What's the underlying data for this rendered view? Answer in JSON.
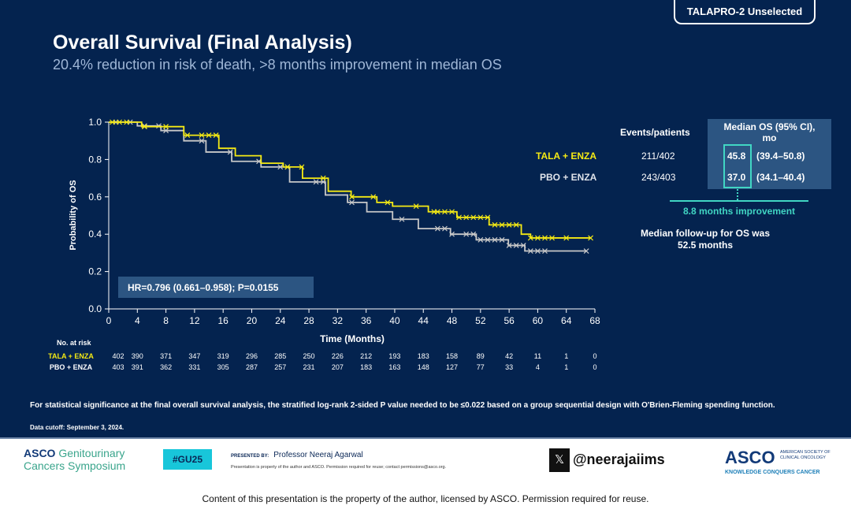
{
  "header": {
    "tag": "TALAPRO-2 Unselected",
    "title": "Overall Survival (Final Analysis)",
    "subtitle": "20.4% reduction in risk of death, >8 months improvement in median OS"
  },
  "chart_data": {
    "type": "line",
    "subtype": "kaplan-meier",
    "xlabel": "Time (Months)",
    "ylabel": "Probability of OS",
    "xlim": [
      0,
      68
    ],
    "ylim": [
      0,
      1.0
    ],
    "xticks": [
      0,
      4,
      8,
      12,
      16,
      20,
      24,
      28,
      32,
      36,
      40,
      44,
      48,
      52,
      56,
      60,
      64,
      68
    ],
    "yticks": [
      "0.0",
      "0.2",
      "0.4",
      "0.6",
      "0.8",
      "1.0"
    ],
    "grid": false,
    "annotation": "HR=0.796 (0.661–0.958); P=0.0155",
    "series": [
      {
        "name": "TALA + ENZA",
        "color": "#f5ea14",
        "x": [
          0,
          2,
          4.6,
          10.5,
          15.4,
          17.7,
          21.3,
          24.4,
          27.1,
          30.7,
          33.9,
          37.5,
          39.7,
          44.7,
          48.7,
          53.2,
          57.7,
          59,
          67.4
        ],
        "y": [
          1,
          1,
          0.976,
          0.93,
          0.86,
          0.82,
          0.78,
          0.76,
          0.7,
          0.63,
          0.6,
          0.57,
          0.55,
          0.52,
          0.49,
          0.45,
          0.4,
          0.38,
          0.38
        ],
        "censored": [
          0.5,
          1.5,
          2.5,
          5,
          8,
          11,
          13,
          14,
          15,
          25,
          27,
          30,
          34,
          37,
          39,
          43,
          45.5,
          46,
          47,
          48,
          49,
          50,
          51,
          52,
          53,
          54,
          55,
          56,
          57,
          59,
          60,
          61,
          62,
          64,
          67.4
        ]
      },
      {
        "name": "PBO + ENZA",
        "color": "#c8c8c8",
        "x": [
          0,
          2,
          4,
          7.3,
          10.5,
          13.6,
          17.2,
          21.3,
          25.3,
          30.3,
          33.4,
          36.1,
          39.7,
          43.3,
          47.8,
          51.4,
          55.9,
          58.2,
          66.8
        ],
        "y": [
          1,
          1,
          0.98,
          0.955,
          0.9,
          0.84,
          0.79,
          0.76,
          0.68,
          0.61,
          0.57,
          0.52,
          0.48,
          0.43,
          0.4,
          0.37,
          0.34,
          0.31,
          0.31
        ],
        "censored": [
          1,
          3,
          5,
          7,
          8,
          13,
          17,
          21,
          24,
          25,
          29,
          30,
          34,
          41,
          46,
          47,
          48,
          50,
          51,
          52,
          53,
          54,
          55,
          56,
          57,
          58,
          59,
          60,
          61,
          66.8
        ]
      }
    ]
  },
  "risk_table": {
    "header": "No. at risk",
    "rows": [
      {
        "label": "TALA + ENZA",
        "color": "#f5ea14",
        "values": [
          "402",
          "390",
          "371",
          "347",
          "319",
          "296",
          "285",
          "250",
          "226",
          "212",
          "193",
          "183",
          "158",
          "89",
          "42",
          "11",
          "1",
          "0"
        ]
      },
      {
        "label": "PBO + ENZA",
        "color": "#ffffff",
        "values": [
          "403",
          "391",
          "362",
          "331",
          "305",
          "287",
          "257",
          "231",
          "207",
          "183",
          "163",
          "148",
          "127",
          "77",
          "33",
          "4",
          "1",
          "0"
        ]
      }
    ]
  },
  "summary": {
    "events_header": "Events/patients",
    "median_header": "Median OS (95% CI), mo",
    "rows": [
      {
        "label": "TALA + ENZA",
        "color": "#f5ea14",
        "events": "211/402",
        "median": "45.8",
        "ci": "(39.4–50.8)"
      },
      {
        "label": "PBO + ENZA",
        "color": "#dfe3ea",
        "events": "243/403",
        "median": "37.0",
        "ci": "(34.1–40.4)"
      }
    ],
    "improvement": "8.8 months improvement",
    "followup": "Median follow-up for OS was 52.5 months",
    "accent": "#41d6c3"
  },
  "footnote": "For statistical significance at the final overall survival analysis, the stratified log-rank 2-sided P value needed to be ≤0.022 based on a group sequential design with O'Brien-Fleming spending function.",
  "cutoff": "Data cutoff: September 3, 2024.",
  "footer": {
    "logo_asco": "ASCO",
    "logo_gu": "Genitourinary Cancers Symposium",
    "hashtag": "#GU25",
    "presented_by": "PRESENTED BY:",
    "presenter": "Professor Neeraj Agarwal",
    "permission": "Presentation is property of the author and ASCO. Permission required for reuse; contact permissions@asco.org.",
    "x_icon": "x-logo-icon",
    "handle": "@neerajaiims",
    "asco": "ASCO",
    "asco_sub": "AMERICAN SOCIETY OF CLINICAL ONCOLOGY",
    "asco_tagline": "KNOWLEDGE CONQUERS CANCER",
    "copyright": "Content of this presentation is the property of the author, licensed by ASCO. Permission required for reuse."
  }
}
